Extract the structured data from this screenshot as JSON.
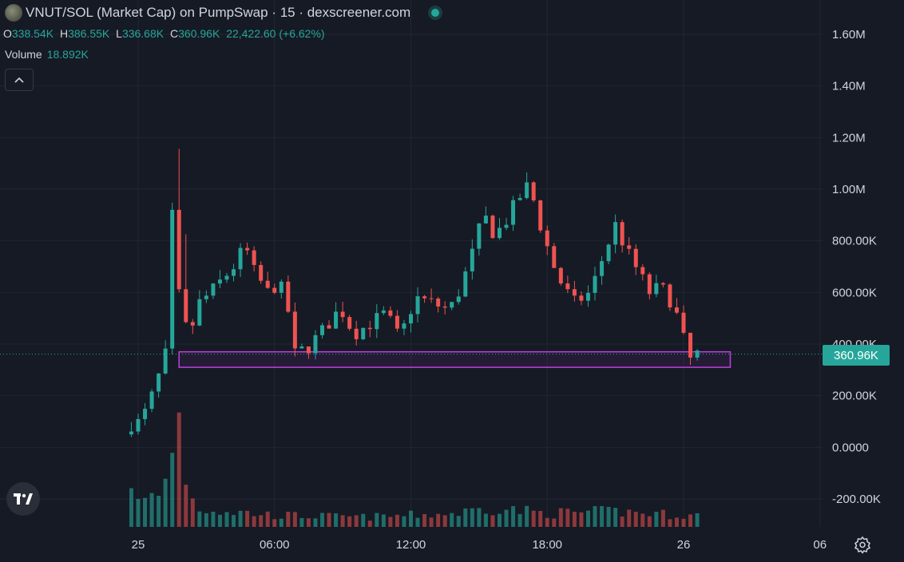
{
  "header": {
    "title": "VNUT/SOL (Market Cap) on PumpSwap · 15 · dexscreener.com"
  },
  "ohlc": {
    "o_label": "O",
    "o_value": "338.54K",
    "h_label": "H",
    "h_value": "386.55K",
    "l_label": "L",
    "l_value": "336.68K",
    "c_label": "C",
    "c_value": "360.96K",
    "change": "22,422.60 (+6.62%)"
  },
  "volume": {
    "label": "Volume",
    "value": "18.892K"
  },
  "collapse_icon": "chevron-up",
  "current_price_label": "360.96K",
  "colors": {
    "up": "#26a69a",
    "down": "#ef5350",
    "background": "#161a25",
    "zone": "#c040e0"
  },
  "chart_data": {
    "type": "candlestick",
    "title": "VNUT/SOL (Market Cap)",
    "ylim": [
      -260000,
      1700000
    ],
    "y_ticks": [
      -200000,
      0,
      200000,
      400000,
      600000,
      800000,
      1000000,
      1200000,
      1400000,
      1600000
    ],
    "y_tick_labels": [
      "-200.00K",
      "0.0000",
      "200.00K",
      "400.00K",
      "600.00K",
      "800.00K",
      "1.00M",
      "1.20M",
      "1.40M",
      "1.60M"
    ],
    "x_ticks": [
      {
        "label": "25",
        "t": 0
      },
      {
        "label": "06:00",
        "t": 6
      },
      {
        "label": "12:00",
        "t": 12
      },
      {
        "label": "18:00",
        "t": 18
      },
      {
        "label": "26",
        "t": 24
      },
      {
        "label": "06",
        "t": 30
      }
    ],
    "x_range_hours": [
      0,
      31
    ],
    "interval_minutes": 15,
    "support_zone": {
      "from_hours": 1.8,
      "to_hours": 25.0,
      "low": 310000,
      "high": 370000
    },
    "current_price": 360960,
    "anchors": [
      [
        -0.3,
        50000
      ],
      [
        0.5,
        120000
      ],
      [
        1.1,
        250000
      ],
      [
        1.6,
        400000
      ],
      [
        1.8,
        920000
      ],
      [
        2.1,
        600000
      ],
      [
        2.5,
        420000
      ],
      [
        3.0,
        560000
      ],
      [
        3.5,
        600000
      ],
      [
        4.0,
        650000
      ],
      [
        4.5,
        700000
      ],
      [
        5.0,
        780000
      ],
      [
        5.4,
        680000
      ],
      [
        6.0,
        600000
      ],
      [
        6.5,
        640000
      ],
      [
        7.0,
        500000
      ],
      [
        7.2,
        360000
      ],
      [
        7.8,
        390000
      ],
      [
        8.5,
        460000
      ],
      [
        9.2,
        540000
      ],
      [
        9.8,
        440000
      ],
      [
        10.5,
        480000
      ],
      [
        11.2,
        520000
      ],
      [
        11.8,
        420000
      ],
      [
        12.5,
        580000
      ],
      [
        13.2,
        560000
      ],
      [
        14.0,
        530000
      ],
      [
        14.5,
        620000
      ],
      [
        15.0,
        750000
      ],
      [
        15.5,
        900000
      ],
      [
        16.0,
        820000
      ],
      [
        16.5,
        880000
      ],
      [
        17.0,
        960000
      ],
      [
        17.5,
        1020000
      ],
      [
        18.0,
        860000
      ],
      [
        18.5,
        720000
      ],
      [
        19.0,
        620000
      ],
      [
        19.5,
        560000
      ],
      [
        20.2,
        600000
      ],
      [
        20.8,
        750000
      ],
      [
        21.3,
        860000
      ],
      [
        21.8,
        760000
      ],
      [
        22.3,
        680000
      ],
      [
        22.8,
        600000
      ],
      [
        23.3,
        620000
      ],
      [
        23.8,
        560000
      ],
      [
        24.2,
        460000
      ],
      [
        24.5,
        330000
      ],
      [
        24.8,
        360000
      ]
    ],
    "volume_profile": [
      [
        -0.3,
        26000
      ],
      [
        0.0,
        12000
      ],
      [
        1.0,
        17000
      ],
      [
        1.5,
        36000
      ],
      [
        1.8,
        68000
      ],
      [
        2.1,
        26000
      ],
      [
        2.5,
        10000
      ],
      [
        4.0,
        8000
      ],
      [
        6.0,
        6000
      ],
      [
        10.0,
        5000
      ],
      [
        14.0,
        7000
      ],
      [
        15.5,
        10000
      ],
      [
        18.0,
        7000
      ],
      [
        21.0,
        8000
      ],
      [
        24.0,
        6000
      ],
      [
        25.0,
        6000
      ]
    ]
  }
}
